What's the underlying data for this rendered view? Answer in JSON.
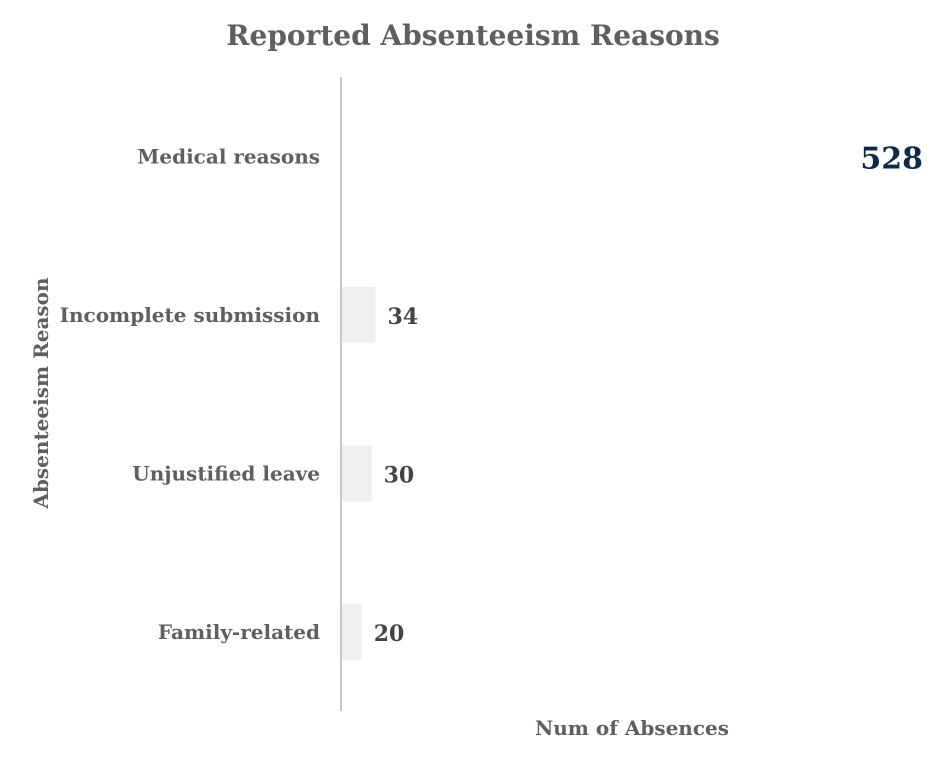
{
  "chart_data": {
    "type": "bar",
    "orientation": "horizontal",
    "title": "Reported Absenteeism Reasons",
    "xlabel": "Num of Absences",
    "ylabel": "Absenteeism Reason",
    "categories": [
      "Medical reasons",
      "Incomplete submission",
      "Unjustified leave",
      "Family-related"
    ],
    "values": [
      528,
      34,
      30,
      20
    ],
    "xlim": [
      0,
      528
    ],
    "grid": false,
    "legend": "none",
    "colors": {
      "bar": "#f0f0f0",
      "highlight": "#0d2a4a",
      "axis_line": "#c8c8c8",
      "text": "#5f5f5f",
      "label": "#444444"
    }
  }
}
